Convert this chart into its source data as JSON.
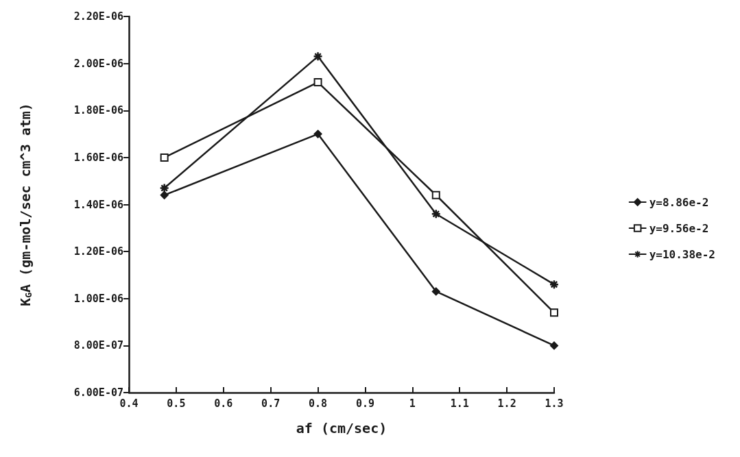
{
  "chart_data": {
    "type": "line",
    "xlabel": "af (cm/sec)",
    "ylabel": "K$_{G}$A (gm-mol/sec cm^3 atm)",
    "xlim": [
      0.4,
      1.3
    ],
    "xticks": [
      0.4,
      0.5,
      0.6,
      0.7,
      0.8,
      0.9,
      1,
      1.1,
      1.2,
      1.3
    ],
    "ylim": [
      6e-07,
      2.2e-06
    ],
    "yticks": [
      {
        "value": 6e-07,
        "label": "6.00E-07"
      },
      {
        "value": 8e-07,
        "label": "8.00E-07"
      },
      {
        "value": 1e-06,
        "label": "1.00E-06"
      },
      {
        "value": 1.2e-06,
        "label": "1.20E-06"
      },
      {
        "value": 1.4e-06,
        "label": "1.40E-06"
      },
      {
        "value": 1.6e-06,
        "label": "1.60E-06"
      },
      {
        "value": 1.8e-06,
        "label": "1.80E-06"
      },
      {
        "value": 2e-06,
        "label": "2.00E-06"
      },
      {
        "value": 2.2e-06,
        "label": "2.20E-06"
      }
    ],
    "x": [
      0.475,
      0.8,
      1.05,
      1.3
    ],
    "series": [
      {
        "name": "y=8.86e-2",
        "color": "#1a1a1a",
        "marker": "diamond",
        "values": [
          1.44e-06,
          1.7e-06,
          1.03e-06,
          8e-07
        ]
      },
      {
        "name": "y=9.56e-2",
        "color": "#1a1a1a",
        "marker": "square",
        "values": [
          1.6e-06,
          1.92e-06,
          1.44e-06,
          9.4e-07
        ]
      },
      {
        "name": "y=10.38e-2",
        "color": "#1a1a1a",
        "marker": "cross",
        "values": [
          1.47e-06,
          2.03e-06,
          1.36e-06,
          1.06e-06
        ]
      }
    ],
    "grid": false,
    "legend": "right",
    "line_style": "solid"
  }
}
